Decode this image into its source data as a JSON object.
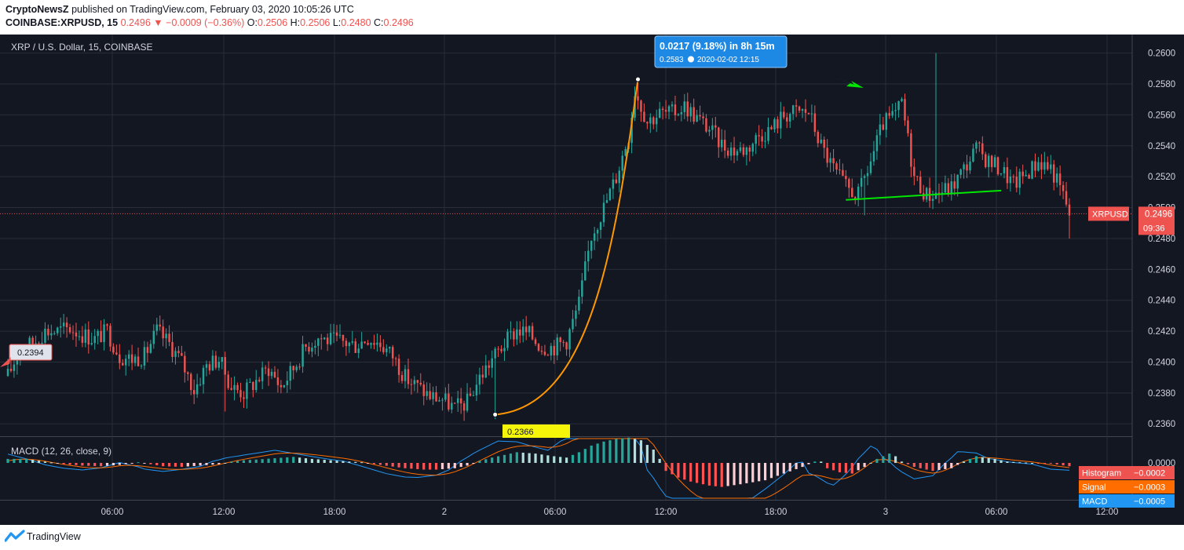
{
  "header": {
    "author": "CryptoNewsZ",
    "published": "published on TradingView.com, February 03, 2020 10:05:26 UTC",
    "symbol": "COINBASE:XRPUSD, 15",
    "last": "0.2496",
    "change": "−0.0009 (−0.36%)",
    "o_label": "O:",
    "o": "0.2506",
    "h_label": "H:",
    "h": "0.2506",
    "l_label": "L:",
    "l": "0.2480",
    "c_label": "C:",
    "c": "0.2496"
  },
  "footer": {
    "brand": "TradingView"
  },
  "colors": {
    "background": "#131722",
    "grid": "#2a2e39",
    "up": "#26a69a",
    "down": "#ef5350",
    "macd_line": "#2196f3",
    "signal_line": "#ff6d00",
    "trend_curve": "#ff9800",
    "trend_line": "#00e600",
    "text": "#d1d4dc"
  },
  "chart_data": {
    "type": "candlestick",
    "title": "XRP / U.S. Dollar, 15, COINBASE",
    "y_ticks": [
      "0.2360",
      "0.2380",
      "0.2400",
      "0.2420",
      "0.2440",
      "0.2460",
      "0.2480",
      "0.2500",
      "0.2520",
      "0.2540",
      "0.2560",
      "0.2580",
      "0.2600"
    ],
    "ylim": [
      0.2352,
      0.2612
    ],
    "x_ticks": [
      "06:00",
      "12:00",
      "18:00",
      "2",
      "06:00",
      "12:00",
      "18:00",
      "3",
      "06:00",
      "12:00"
    ],
    "price_path": [
      [
        0,
        0.2391
      ],
      [
        4,
        0.2409
      ],
      [
        8,
        0.2412
      ],
      [
        12,
        0.242
      ],
      [
        16,
        0.242
      ],
      [
        20,
        0.2422
      ],
      [
        24,
        0.2418
      ],
      [
        28,
        0.2415
      ],
      [
        32,
        0.242
      ],
      [
        36,
        0.2404
      ],
      [
        40,
        0.2402
      ],
      [
        44,
        0.2404
      ],
      [
        48,
        0.242
      ],
      [
        52,
        0.2412
      ],
      [
        56,
        0.24
      ],
      [
        60,
        0.2382
      ],
      [
        64,
        0.2398
      ],
      [
        68,
        0.2402
      ],
      [
        72,
        0.2384
      ],
      [
        76,
        0.238
      ],
      [
        80,
        0.2388
      ],
      [
        84,
        0.2396
      ],
      [
        88,
        0.2384
      ],
      [
        92,
        0.2396
      ],
      [
        96,
        0.241
      ],
      [
        100,
        0.2416
      ],
      [
        104,
        0.2414
      ],
      [
        108,
        0.2413
      ],
      [
        112,
        0.2411
      ],
      [
        116,
        0.2416
      ],
      [
        120,
        0.2412
      ],
      [
        124,
        0.2404
      ],
      [
        128,
        0.239
      ],
      [
        132,
        0.2384
      ],
      [
        136,
        0.2378
      ],
      [
        140,
        0.2376
      ],
      [
        144,
        0.237
      ],
      [
        148,
        0.2374
      ],
      [
        152,
        0.239
      ],
      [
        156,
        0.2402
      ],
      [
        160,
        0.2412
      ],
      [
        164,
        0.2421
      ],
      [
        168,
        0.2418
      ],
      [
        172,
        0.241
      ],
      [
        176,
        0.241
      ],
      [
        180,
        0.2414
      ],
      [
        184,
        0.2438
      ],
      [
        188,
        0.2482
      ],
      [
        192,
        0.25
      ],
      [
        196,
        0.252
      ],
      [
        200,
        0.2547
      ],
      [
        202,
        0.2576
      ],
      [
        206,
        0.2556
      ],
      [
        210,
        0.2561
      ],
      [
        214,
        0.2561
      ],
      [
        218,
        0.2566
      ],
      [
        222,
        0.2558
      ],
      [
        226,
        0.2551
      ],
      [
        230,
        0.2541
      ],
      [
        234,
        0.2537
      ],
      [
        238,
        0.2538
      ],
      [
        242,
        0.2547
      ],
      [
        246,
        0.2551
      ],
      [
        250,
        0.256
      ],
      [
        254,
        0.2562
      ],
      [
        258,
        0.2562
      ],
      [
        262,
        0.254
      ],
      [
        266,
        0.2525
      ],
      [
        270,
        0.2513
      ],
      [
        274,
        0.2508
      ],
      [
        278,
        0.253
      ],
      [
        282,
        0.2554
      ],
      [
        286,
        0.256
      ],
      [
        288,
        0.2568
      ],
      [
        292,
        0.252
      ],
      [
        296,
        0.2508
      ],
      [
        300,
        0.251
      ],
      [
        304,
        0.2513
      ],
      [
        308,
        0.2525
      ],
      [
        312,
        0.2538
      ],
      [
        316,
        0.253
      ],
      [
        320,
        0.2525
      ],
      [
        324,
        0.2515
      ],
      [
        328,
        0.2522
      ],
      [
        332,
        0.253
      ],
      [
        336,
        0.2526
      ],
      [
        340,
        0.2508
      ],
      [
        342,
        0.2496
      ]
    ],
    "wick_marks": [
      [
        70,
        0.2368,
        "low"
      ],
      [
        157,
        0.2363,
        "low"
      ],
      [
        203,
        0.2583,
        "high"
      ],
      [
        299,
        0.26,
        "high"
      ],
      [
        276,
        0.2495,
        "low"
      ],
      [
        342,
        0.248,
        "low"
      ]
    ],
    "last_price": "0.2496",
    "last_label": "XRPUSD",
    "countdown": "09:36",
    "label_start": "0.2394",
    "label_low": "0.2366",
    "measure": {
      "main": "0.0217 (9.18%) in 8h 15m",
      "price": "0.2583",
      "clock_icon": "clock-icon",
      "time": "2020-02-02  12:15"
    },
    "trend_curve": {
      "from": [
        157,
        0.2366
      ],
      "to": [
        203,
        0.2583
      ]
    },
    "support_line": {
      "from": [
        270,
        0.2505
      ],
      "to": [
        320,
        0.2511
      ]
    },
    "macd": {
      "title": "MACD (12, 26, close, 9)",
      "y_ticks": [
        "0.0000"
      ],
      "labels": [
        {
          "name": "Histogram",
          "value": "−0.0002",
          "color": "#ef5350"
        },
        {
          "name": "Signal",
          "value": "−0.0003",
          "color": "#ff6d00"
        },
        {
          "name": "MACD",
          "value": "−0.0005",
          "color": "#2196f3"
        }
      ],
      "histogram_path": [
        [
          0,
          0.6
        ],
        [
          6,
          0.6
        ],
        [
          12,
          0.2
        ],
        [
          18,
          -0.2
        ],
        [
          24,
          -0.4
        ],
        [
          30,
          -0.5
        ],
        [
          36,
          -0.3
        ],
        [
          42,
          0.1
        ],
        [
          46,
          -0.2
        ],
        [
          50,
          -0.5
        ],
        [
          56,
          -0.6
        ],
        [
          62,
          -0.4
        ],
        [
          68,
          -0.2
        ],
        [
          72,
          0.2
        ],
        [
          76,
          0.4
        ],
        [
          80,
          0.5
        ],
        [
          86,
          0.7
        ],
        [
          92,
          0.9
        ],
        [
          98,
          0.6
        ],
        [
          104,
          0.4
        ],
        [
          110,
          0.2
        ],
        [
          114,
          0.1
        ],
        [
          120,
          -0.3
        ],
        [
          128,
          -0.8
        ],
        [
          134,
          -1.0
        ],
        [
          138,
          -1.0
        ],
        [
          144,
          -0.8
        ],
        [
          148,
          -0.4
        ],
        [
          152,
          0.3
        ],
        [
          156,
          0.8
        ],
        [
          160,
          1.2
        ],
        [
          164,
          1.6
        ],
        [
          170,
          1.4
        ],
        [
          176,
          1.0
        ],
        [
          180,
          0.8
        ],
        [
          184,
          1.6
        ],
        [
          188,
          2.6
        ],
        [
          192,
          3.2
        ],
        [
          196,
          3.6
        ],
        [
          200,
          3.8
        ],
        [
          204,
          3.4
        ],
        [
          208,
          2.0
        ],
        [
          210,
          0.6
        ],
        [
          212,
          -1.2
        ],
        [
          216,
          -2.2
        ],
        [
          220,
          -2.8
        ],
        [
          226,
          -3.4
        ],
        [
          230,
          -3.6
        ],
        [
          236,
          -3.2
        ],
        [
          244,
          -2.6
        ],
        [
          250,
          -1.6
        ],
        [
          256,
          -0.6
        ],
        [
          260,
          0.2
        ],
        [
          262,
          0.2
        ],
        [
          264,
          -0.8
        ],
        [
          268,
          -1.4
        ],
        [
          272,
          -1.6
        ],
        [
          276,
          -0.6
        ],
        [
          280,
          0.6
        ],
        [
          284,
          1.4
        ],
        [
          286,
          1.0
        ],
        [
          288,
          0.2
        ],
        [
          292,
          -0.6
        ],
        [
          298,
          -1.2
        ],
        [
          304,
          -0.8
        ],
        [
          308,
          0.2
        ],
        [
          312,
          1.0
        ],
        [
          318,
          0.6
        ],
        [
          322,
          0.2
        ],
        [
          330,
          0.0
        ],
        [
          336,
          -0.1
        ],
        [
          342,
          -0.5
        ]
      ]
    }
  }
}
